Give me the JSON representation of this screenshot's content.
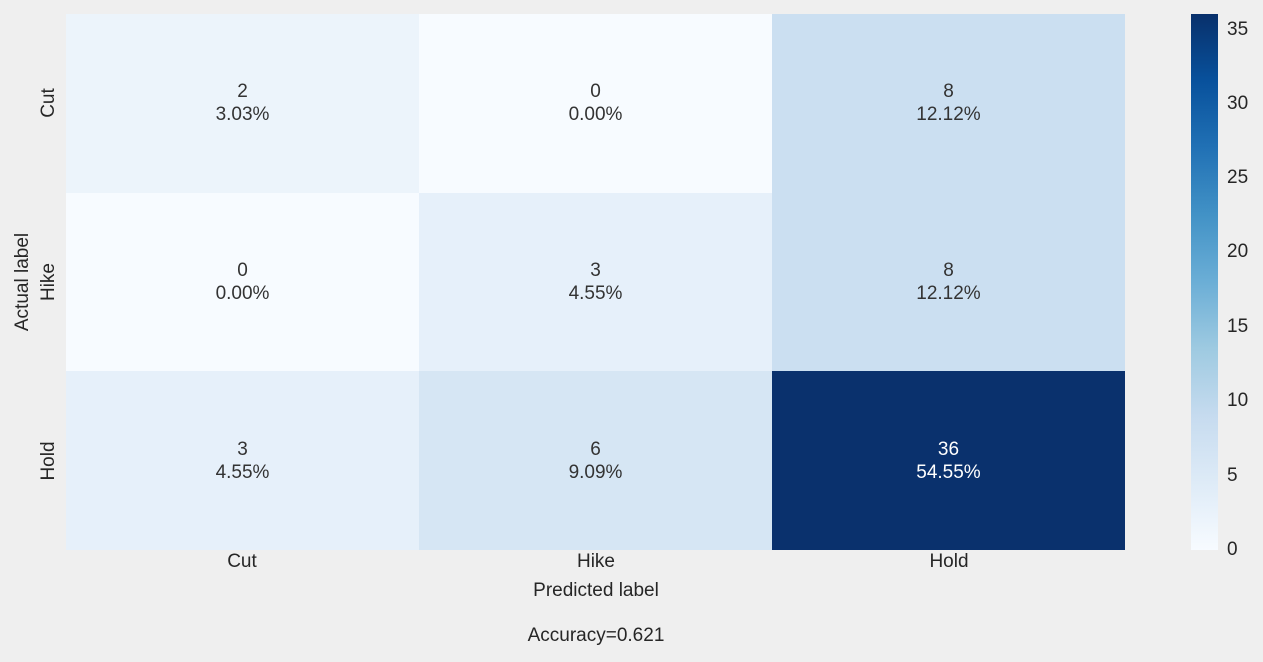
{
  "figure": {
    "background": "#efefef",
    "xlabel": "Predicted label",
    "ylabel": "Actual label",
    "footer": "Accuracy=0.621"
  },
  "x_ticks": [
    "Cut",
    "Hike",
    "Hold"
  ],
  "y_ticks": [
    "Cut",
    "Hike",
    "Hold"
  ],
  "cells": [
    {
      "value": "2",
      "percent": "3.03%",
      "bg": "#ecf4fb",
      "fg": "#333333"
    },
    {
      "value": "0",
      "percent": "0.00%",
      "bg": "#f7fbff",
      "fg": "#333333"
    },
    {
      "value": "8",
      "percent": "12.12%",
      "bg": "#cbdff1",
      "fg": "#333333"
    },
    {
      "value": "0",
      "percent": "0.00%",
      "bg": "#f7fbff",
      "fg": "#333333"
    },
    {
      "value": "3",
      "percent": "4.55%",
      "bg": "#e6f0fa",
      "fg": "#333333"
    },
    {
      "value": "8",
      "percent": "12.12%",
      "bg": "#cbdff1",
      "fg": "#333333"
    },
    {
      "value": "3",
      "percent": "4.55%",
      "bg": "#e6f0fa",
      "fg": "#333333"
    },
    {
      "value": "6",
      "percent": "9.09%",
      "bg": "#d6e6f4",
      "fg": "#333333"
    },
    {
      "value": "36",
      "percent": "54.55%",
      "bg": "#0a316d",
      "fg": "#ffffff"
    }
  ],
  "colorbar": {
    "ticks": [
      "35",
      "30",
      "25",
      "20",
      "15",
      "10",
      "5",
      "0"
    ],
    "stops": [
      "#f7fbff",
      "#deebf7",
      "#c6dbef",
      "#9ecae1",
      "#6baed6",
      "#4292c6",
      "#2171b5",
      "#08519c",
      "#08306b"
    ]
  },
  "chart_data": {
    "type": "heatmap",
    "title": "",
    "categories_x": [
      "Cut",
      "Hike",
      "Hold"
    ],
    "categories_y": [
      "Cut",
      "Hike",
      "Hold"
    ],
    "xlabel": "Predicted label",
    "ylabel": "Actual label",
    "matrix": [
      [
        2,
        0,
        8
      ],
      [
        0,
        3,
        8
      ],
      [
        3,
        6,
        36
      ]
    ],
    "percent_matrix": [
      [
        3.03,
        0.0,
        12.12
      ],
      [
        0.0,
        4.55,
        12.12
      ],
      [
        4.55,
        9.09,
        54.55
      ]
    ],
    "annotation": "Accuracy=0.621",
    "colormap": "Blues",
    "vmin": 0,
    "vmax": 36,
    "colorbar_ticks": [
      0,
      5,
      10,
      15,
      20,
      25,
      30,
      35
    ],
    "colorbar_position": "right",
    "grid": false
  }
}
